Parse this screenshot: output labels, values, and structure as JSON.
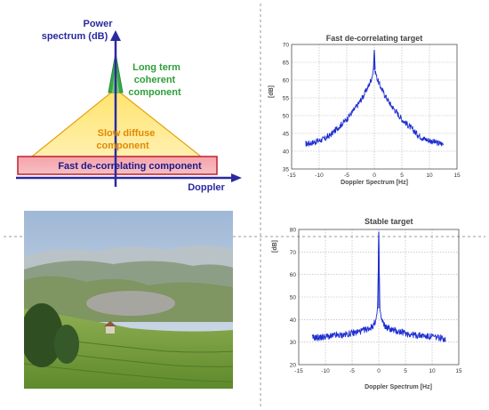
{
  "diagram": {
    "y_axis_label_line1": "Power",
    "y_axis_label_line2": "spectrum (dB)",
    "x_axis_label": "Doppler",
    "coherent_line1": "Long term",
    "coherent_line2": "coherent",
    "coherent_line3": "component",
    "diffuse_line1": "Slow diffuse",
    "diffuse_line2": "component",
    "fast_label": "Fast de-correlating component",
    "colors": {
      "axis": "#2a2aa0",
      "coherent": "#2e9e3a",
      "diffuse_fill": "#ffe98a",
      "diffuse_text": "#e08a00",
      "fast_fill": "#f7a0a8",
      "fast_border": "#c02030",
      "fast_text": "#1a1a8a"
    }
  },
  "photo": {
    "subject": "landscape"
  },
  "chart_data": [
    {
      "type": "line",
      "title": "Fast de-correlating target",
      "xlabel": "Doppler Spectrum [Hz]",
      "ylabel": "[dB]",
      "xlim": [
        -15,
        15
      ],
      "ylim": [
        35,
        70
      ],
      "xticks": [
        -15,
        -10,
        -5,
        0,
        5,
        10,
        15
      ],
      "yticks": [
        35,
        40,
        45,
        50,
        55,
        60,
        65,
        70
      ],
      "grid": true,
      "line_color": "#1f2fd0",
      "series": [
        {
          "x": [
            -12.5,
            -11,
            -10,
            -9,
            -8,
            -7,
            -6,
            -5,
            -4,
            -3,
            -2,
            -1,
            -0.5,
            -0.1,
            0,
            0.1,
            0.5,
            1,
            2,
            3,
            4,
            5,
            6,
            7,
            8,
            9,
            10,
            11,
            12.5
          ],
          "y": [
            42,
            42.5,
            43,
            43.5,
            44.5,
            46,
            47.5,
            49,
            51,
            53,
            55.5,
            58.5,
            60.5,
            63,
            68.5,
            63,
            60.5,
            58.5,
            55.5,
            53,
            51,
            49,
            47.5,
            46,
            44.5,
            43.5,
            43,
            42.5,
            42
          ]
        }
      ]
    },
    {
      "type": "line",
      "title": "Stable target",
      "xlabel": "Doppler Spectrum [Hz]",
      "ylabel": "[dB]",
      "xlim": [
        -15,
        15
      ],
      "ylim": [
        20,
        80
      ],
      "xticks": [
        -15,
        -10,
        -5,
        0,
        5,
        10,
        15
      ],
      "yticks": [
        20,
        30,
        40,
        50,
        60,
        70,
        80
      ],
      "grid": true,
      "line_color": "#1f2fd0",
      "series": [
        {
          "x": [
            -12.5,
            -11,
            -10,
            -9,
            -8,
            -7,
            -6,
            -5,
            -4,
            -3,
            -2,
            -1.5,
            -1,
            -0.5,
            -0.2,
            0,
            0.2,
            0.5,
            1,
            1.5,
            2,
            3,
            4,
            5,
            6,
            7,
            8,
            9,
            10,
            11,
            12.5
          ],
          "y": [
            32,
            32,
            32.5,
            32.5,
            33,
            33,
            33.5,
            34,
            34.5,
            35,
            36,
            36.5,
            37.5,
            40,
            45,
            79,
            45,
            40,
            37.5,
            36.5,
            36,
            35,
            34.5,
            34,
            33.5,
            33,
            33,
            32.5,
            32.5,
            32,
            31.5
          ]
        }
      ]
    }
  ]
}
